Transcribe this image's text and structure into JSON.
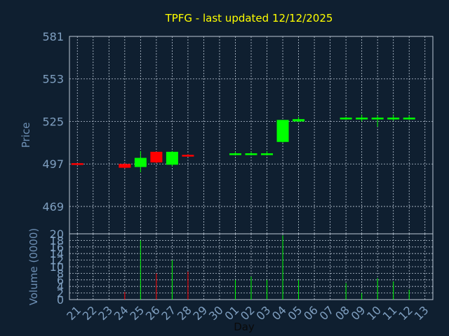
{
  "title": "TPFG - last updated 12/12/2025",
  "colors": {
    "background": "#0f1f30",
    "title": "#ffff00",
    "axis_text": "#7f9fc0",
    "label_text": "#6d8fb4",
    "grid": "#bcc8d6",
    "up": "#00ff00",
    "down": "#ff0000"
  },
  "chart_data": [
    {
      "type": "candlestick",
      "ylabel": "Price",
      "ylim": [
        451,
        581
      ],
      "yticks": [
        "581",
        "553",
        "525",
        "497",
        "469"
      ],
      "ytick_values": [
        581,
        553,
        525,
        497,
        469
      ],
      "grid": true,
      "categories": [
        "21",
        "22",
        "23",
        "24",
        "25",
        "26",
        "27",
        "28",
        "29",
        "30",
        "01",
        "02",
        "03",
        "04",
        "05",
        "06",
        "07",
        "08",
        "09",
        "10",
        "11",
        "12",
        "13"
      ],
      "candles": [
        {
          "day": "21",
          "open": 497.5,
          "high": 497.5,
          "low": 497.5,
          "close": 497.0,
          "dir": "down"
        },
        {
          "day": "24",
          "open": 497.0,
          "high": 497.5,
          "low": 494.0,
          "close": 494.5,
          "dir": "down"
        },
        {
          "day": "25",
          "open": 495.0,
          "high": 505.5,
          "low": 491.5,
          "close": 501.0,
          "dir": "up"
        },
        {
          "day": "26",
          "open": 505.0,
          "high": 505.0,
          "low": 497.5,
          "close": 498.0,
          "dir": "down"
        },
        {
          "day": "27",
          "open": 496.5,
          "high": 505.5,
          "low": 495.5,
          "close": 505.0,
          "dir": "up"
        },
        {
          "day": "28",
          "open": 503.0,
          "high": 503.5,
          "low": 502.0,
          "close": 502.5,
          "dir": "down"
        },
        {
          "day": "01",
          "open": 504.0,
          "high": 505.0,
          "low": 503.0,
          "close": 504.0,
          "dir": "up"
        },
        {
          "day": "02",
          "open": 504.0,
          "high": 505.0,
          "low": 503.0,
          "close": 504.0,
          "dir": "up"
        },
        {
          "day": "03",
          "open": 504.0,
          "high": 505.5,
          "low": 503.0,
          "close": 504.0,
          "dir": "up"
        },
        {
          "day": "04",
          "open": 511.5,
          "high": 526.0,
          "low": 511.0,
          "close": 526.0,
          "dir": "up"
        },
        {
          "day": "05",
          "open": 525.0,
          "high": 528.0,
          "low": 524.5,
          "close": 526.5,
          "dir": "up"
        },
        {
          "day": "08",
          "open": 527.0,
          "high": 528.0,
          "low": 526.0,
          "close": 527.5,
          "dir": "up"
        },
        {
          "day": "09",
          "open": 527.5,
          "high": 529.5,
          "low": 525.0,
          "close": 527.5,
          "dir": "up"
        },
        {
          "day": "10",
          "open": 527.5,
          "high": 529.0,
          "low": 521.5,
          "close": 527.5,
          "dir": "up"
        },
        {
          "day": "11",
          "open": 527.5,
          "high": 529.5,
          "low": 525.5,
          "close": 527.5,
          "dir": "up"
        },
        {
          "day": "12",
          "open": 527.5,
          "high": 529.0,
          "low": 526.0,
          "close": 527.5,
          "dir": "up"
        }
      ]
    },
    {
      "type": "bar",
      "xlabel": "Day",
      "ylabel": "Volume (0000)",
      "ylim": [
        0,
        20
      ],
      "yticks": [
        "20",
        "18",
        "16",
        "14",
        "12",
        "10",
        "8",
        "6",
        "4",
        "2",
        "0"
      ],
      "ytick_values": [
        20,
        18,
        16,
        14,
        12,
        10,
        8,
        6,
        4,
        2,
        0
      ],
      "grid": true,
      "categories": [
        "21",
        "22",
        "23",
        "24",
        "25",
        "26",
        "27",
        "28",
        "29",
        "30",
        "01",
        "02",
        "03",
        "04",
        "05",
        "06",
        "07",
        "08",
        "09",
        "10",
        "11",
        "12",
        "13"
      ],
      "bars": [
        {
          "day": "24",
          "value": 2.3,
          "dir": "down"
        },
        {
          "day": "25",
          "value": 18.0,
          "dir": "up"
        },
        {
          "day": "26",
          "value": 8.0,
          "dir": "down"
        },
        {
          "day": "27",
          "value": 12.0,
          "dir": "up"
        },
        {
          "day": "28",
          "value": 8.5,
          "dir": "down"
        },
        {
          "day": "01",
          "value": 6.0,
          "dir": "up"
        },
        {
          "day": "02",
          "value": 7.0,
          "dir": "up"
        },
        {
          "day": "03",
          "value": 6.0,
          "dir": "up"
        },
        {
          "day": "04",
          "value": 19.5,
          "dir": "up"
        },
        {
          "day": "05",
          "value": 6.0,
          "dir": "up"
        },
        {
          "day": "08",
          "value": 5.0,
          "dir": "up"
        },
        {
          "day": "09",
          "value": 2.0,
          "dir": "up"
        },
        {
          "day": "10",
          "value": 6.5,
          "dir": "up"
        },
        {
          "day": "11",
          "value": 5.5,
          "dir": "up"
        },
        {
          "day": "12",
          "value": 3.0,
          "dir": "up"
        }
      ]
    }
  ]
}
